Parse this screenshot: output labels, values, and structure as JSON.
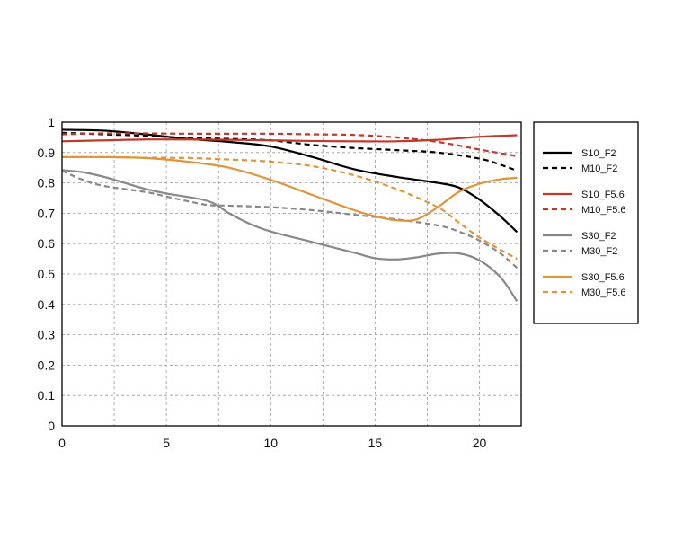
{
  "chart_data": {
    "type": "line",
    "xlim": [
      0,
      22
    ],
    "ylim": [
      0,
      1
    ],
    "x_ticks": [
      0,
      5,
      10,
      15,
      20
    ],
    "x_tick_labels": [
      "0",
      "5",
      "10",
      "15",
      "20"
    ],
    "y_ticks": [
      0,
      0.1,
      0.2,
      0.3,
      0.4,
      0.5,
      0.6,
      0.7,
      0.8,
      0.9,
      1
    ],
    "y_tick_labels": [
      "0",
      "0.1",
      "0.2",
      "0.3",
      "0.4",
      "0.5",
      "0.6",
      "0.7",
      "0.8",
      "0.9",
      "1"
    ],
    "x_grid": [
      0,
      2.5,
      5,
      7.5,
      10,
      12.5,
      15,
      17.5,
      20
    ],
    "grid": true,
    "legend_position": "right",
    "legend_groups": [
      [
        "S10_F2",
        "M10_F2"
      ],
      [
        "S10_F5.6",
        "M10_F5.6"
      ],
      [
        "S30_F2",
        "M30_F2"
      ],
      [
        "S30_F5.6",
        "M30_F5.6"
      ]
    ],
    "series": [
      {
        "name": "S10_F2",
        "color": "#000000",
        "style": "solid",
        "points": [
          [
            0,
            0.975
          ],
          [
            2,
            0.972
          ],
          [
            4,
            0.96
          ],
          [
            6,
            0.945
          ],
          [
            8,
            0.935
          ],
          [
            10,
            0.92
          ],
          [
            12,
            0.885
          ],
          [
            14,
            0.845
          ],
          [
            16,
            0.82
          ],
          [
            18,
            0.8
          ],
          [
            19,
            0.785
          ],
          [
            20,
            0.745
          ],
          [
            21,
            0.69
          ],
          [
            21.8,
            0.638
          ]
        ]
      },
      {
        "name": "M10_F2",
        "color": "#000000",
        "style": "dashed",
        "points": [
          [
            0,
            0.965
          ],
          [
            2,
            0.96
          ],
          [
            4,
            0.955
          ],
          [
            6,
            0.948
          ],
          [
            8,
            0.945
          ],
          [
            10,
            0.94
          ],
          [
            12,
            0.925
          ],
          [
            14,
            0.915
          ],
          [
            16,
            0.908
          ],
          [
            18,
            0.9
          ],
          [
            20,
            0.88
          ],
          [
            21,
            0.86
          ],
          [
            21.8,
            0.84
          ]
        ]
      },
      {
        "name": "S10_F5.6",
        "color": "#c0392b",
        "style": "solid",
        "points": [
          [
            0,
            0.937
          ],
          [
            2,
            0.94
          ],
          [
            4,
            0.943
          ],
          [
            6,
            0.943
          ],
          [
            8,
            0.942
          ],
          [
            10,
            0.94
          ],
          [
            12,
            0.938
          ],
          [
            14,
            0.937
          ],
          [
            16,
            0.937
          ],
          [
            18,
            0.942
          ],
          [
            20,
            0.952
          ],
          [
            21.8,
            0.957
          ]
        ]
      },
      {
        "name": "M10_F5.6",
        "color": "#c0392b",
        "style": "dashed",
        "points": [
          [
            0,
            0.96
          ],
          [
            2,
            0.963
          ],
          [
            4,
            0.963
          ],
          [
            6,
            0.962
          ],
          [
            8,
            0.962
          ],
          [
            10,
            0.962
          ],
          [
            12,
            0.96
          ],
          [
            14,
            0.958
          ],
          [
            16,
            0.95
          ],
          [
            18,
            0.935
          ],
          [
            20,
            0.91
          ],
          [
            21.8,
            0.888
          ]
        ]
      },
      {
        "name": "S30_F2",
        "color": "#888888",
        "style": "solid",
        "points": [
          [
            0,
            0.842
          ],
          [
            1,
            0.835
          ],
          [
            2,
            0.82
          ],
          [
            3,
            0.8
          ],
          [
            4,
            0.78
          ],
          [
            5,
            0.765
          ],
          [
            7,
            0.74
          ],
          [
            8,
            0.7
          ],
          [
            9,
            0.665
          ],
          [
            10,
            0.64
          ],
          [
            12,
            0.605
          ],
          [
            14,
            0.57
          ],
          [
            15,
            0.552
          ],
          [
            16,
            0.548
          ],
          [
            17,
            0.555
          ],
          [
            18,
            0.567
          ],
          [
            19,
            0.568
          ],
          [
            20,
            0.545
          ],
          [
            21,
            0.49
          ],
          [
            21.8,
            0.41
          ]
        ]
      },
      {
        "name": "M30_F2",
        "color": "#888888",
        "style": "dashed",
        "points": [
          [
            0,
            0.84
          ],
          [
            1,
            0.81
          ],
          [
            2,
            0.79
          ],
          [
            4,
            0.77
          ],
          [
            5,
            0.755
          ],
          [
            6,
            0.74
          ],
          [
            7,
            0.727
          ],
          [
            8,
            0.725
          ],
          [
            10,
            0.72
          ],
          [
            12,
            0.71
          ],
          [
            14,
            0.695
          ],
          [
            16,
            0.68
          ],
          [
            18,
            0.66
          ],
          [
            19,
            0.64
          ],
          [
            20,
            0.61
          ],
          [
            21,
            0.568
          ],
          [
            21.8,
            0.52
          ]
        ]
      },
      {
        "name": "S30_F5.6",
        "color": "#e0953a",
        "style": "solid",
        "points": [
          [
            0,
            0.885
          ],
          [
            2,
            0.885
          ],
          [
            4,
            0.882
          ],
          [
            6,
            0.87
          ],
          [
            8,
            0.85
          ],
          [
            10,
            0.81
          ],
          [
            12,
            0.76
          ],
          [
            14,
            0.71
          ],
          [
            15,
            0.69
          ],
          [
            16,
            0.677
          ],
          [
            17,
            0.68
          ],
          [
            18,
            0.72
          ],
          [
            19,
            0.77
          ],
          [
            20,
            0.797
          ],
          [
            21,
            0.812
          ],
          [
            21.8,
            0.817
          ]
        ]
      },
      {
        "name": "M30_F5.6",
        "color": "#e0953a",
        "style": "dashed",
        "points": [
          [
            0,
            0.885
          ],
          [
            2,
            0.885
          ],
          [
            4,
            0.883
          ],
          [
            6,
            0.882
          ],
          [
            8,
            0.877
          ],
          [
            10,
            0.87
          ],
          [
            12,
            0.855
          ],
          [
            14,
            0.825
          ],
          [
            16,
            0.78
          ],
          [
            18,
            0.72
          ],
          [
            19,
            0.67
          ],
          [
            20,
            0.62
          ],
          [
            21,
            0.58
          ],
          [
            21.8,
            0.55
          ]
        ]
      }
    ]
  }
}
